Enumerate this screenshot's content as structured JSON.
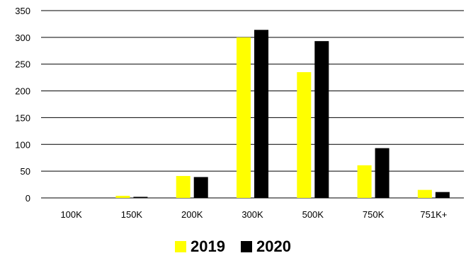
{
  "chart_data": {
    "type": "bar",
    "categories": [
      "100K",
      "150K",
      "200K",
      "300K",
      "500K",
      "750K",
      "751K+"
    ],
    "series": [
      {
        "name": "2019",
        "color": "#ffff00",
        "values": [
          0,
          4,
          41,
          300,
          235,
          61,
          15
        ]
      },
      {
        "name": "2020",
        "color": "#000000",
        "values": [
          0,
          2,
          39,
          314,
          293,
          93,
          11
        ]
      }
    ],
    "ylim": [
      0,
      350
    ],
    "yticks": [
      0,
      50,
      100,
      150,
      200,
      250,
      300,
      350
    ],
    "grid": true,
    "legend": "bottom"
  }
}
